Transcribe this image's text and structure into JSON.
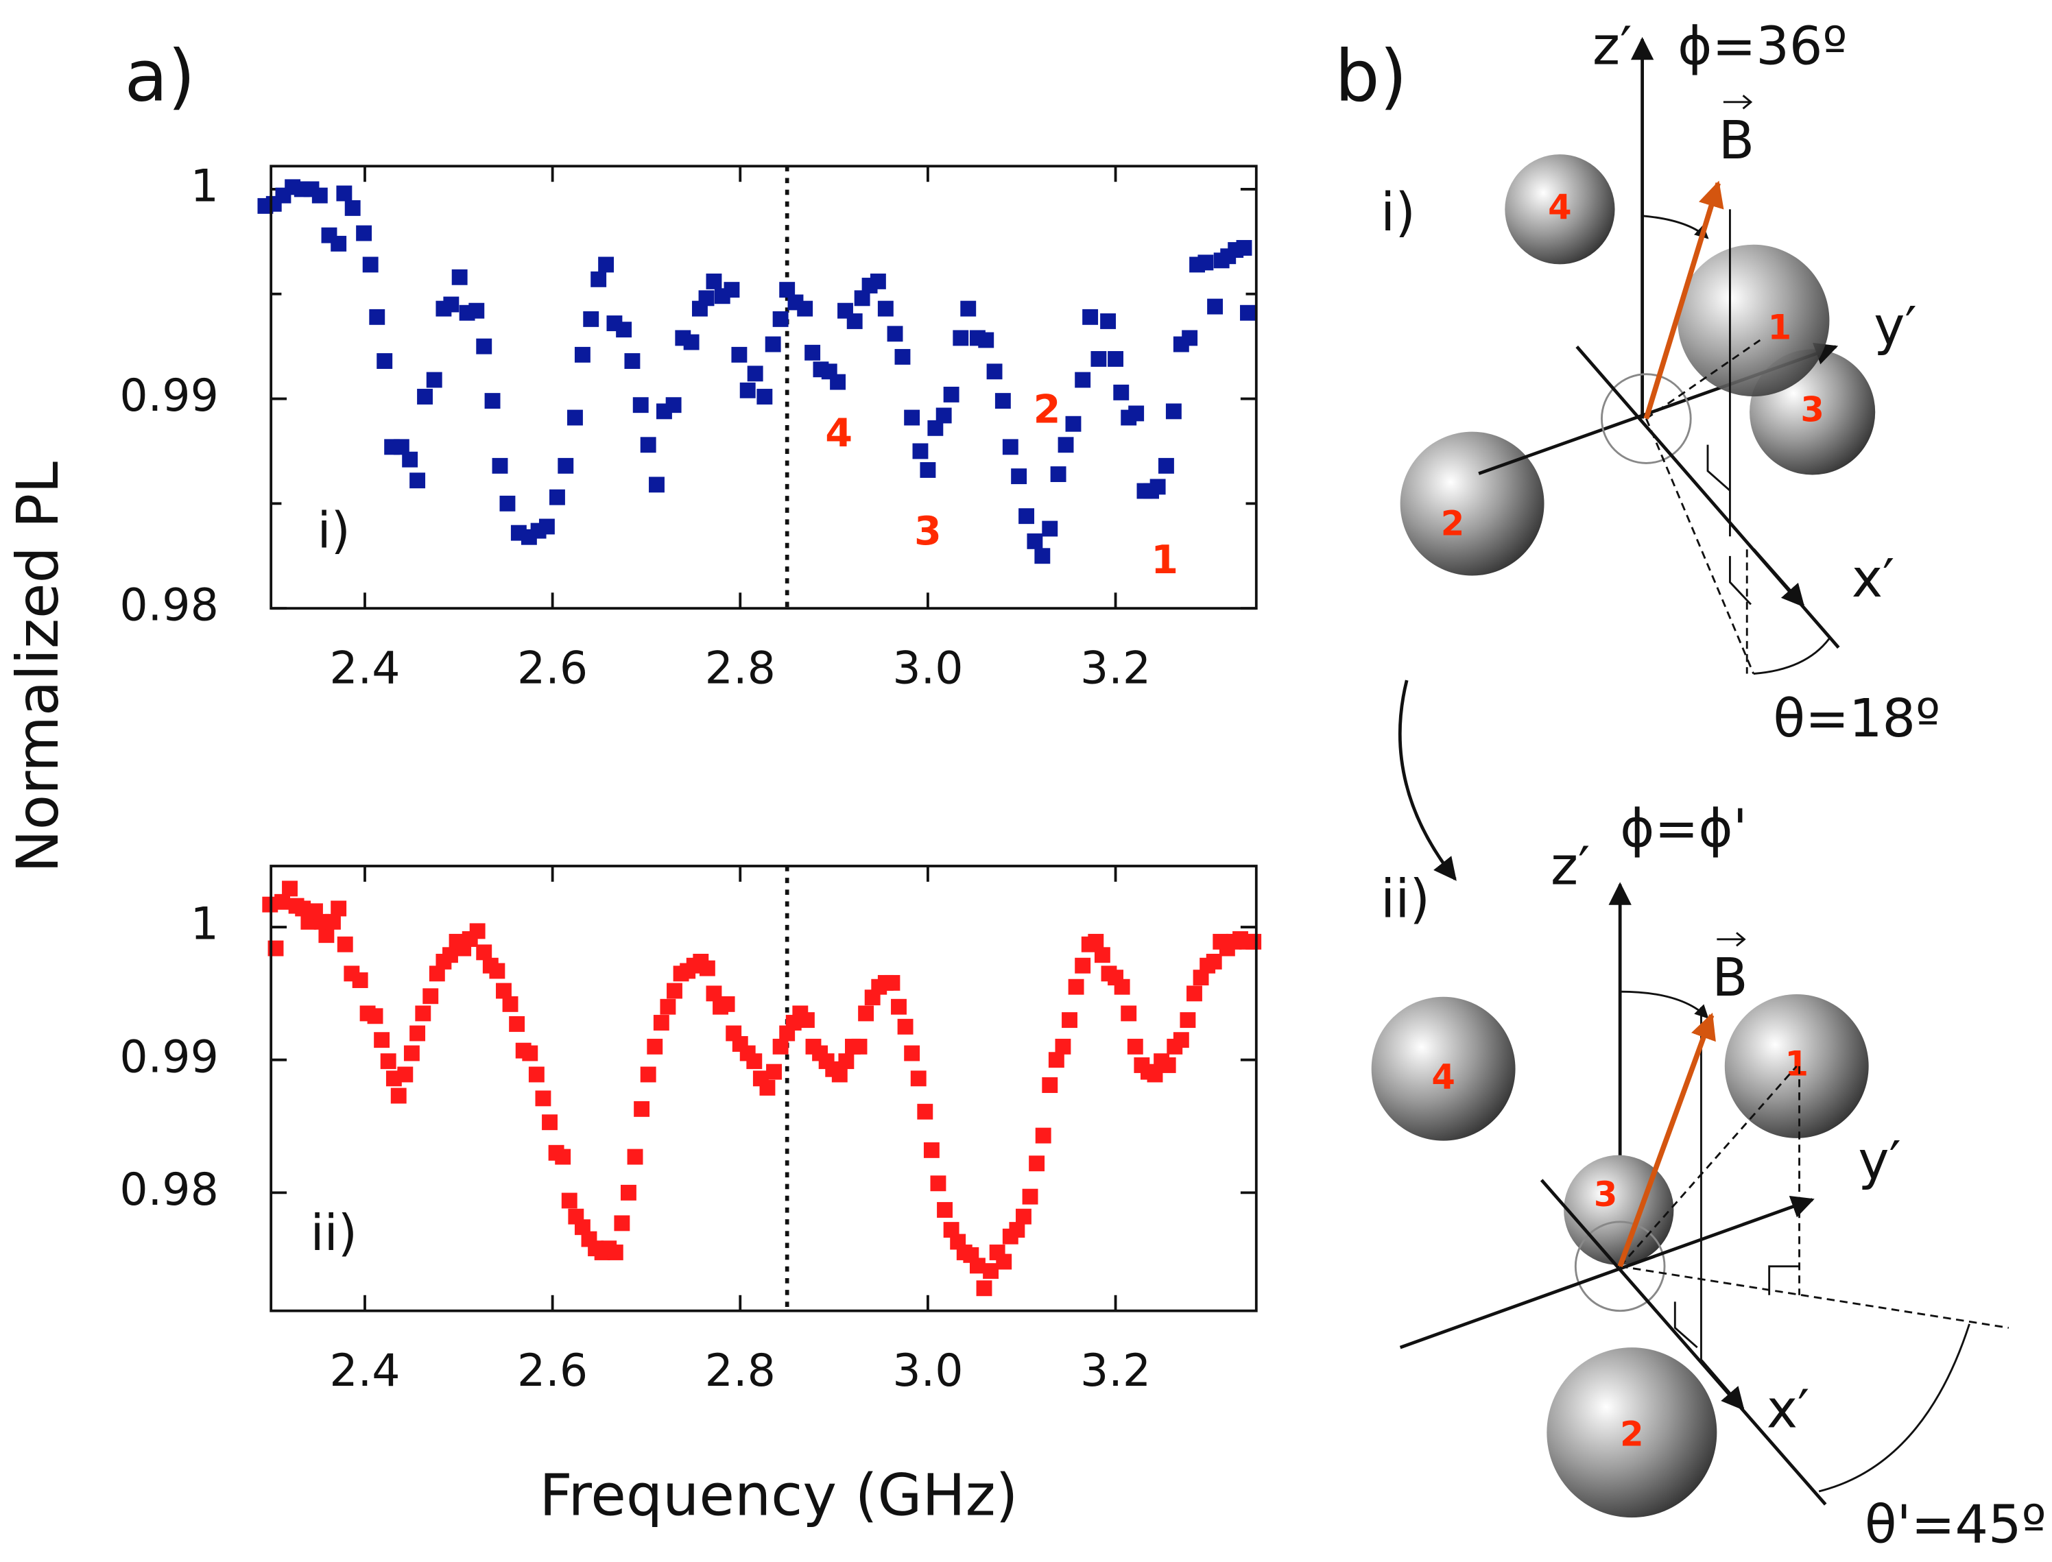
{
  "panel_labels": [
    "a)",
    "b)"
  ],
  "chart_data": [
    {
      "type": "scatter",
      "ylabel": "Normalized PL",
      "panel": "i)",
      "color": "#0a1a9c",
      "annotations": [
        "4",
        "3",
        "2",
        "1"
      ],
      "annotation_color": "#ff2a00",
      "xlim": [
        2.3,
        3.35
      ],
      "xticks": [
        2.4,
        2.6,
        2.8,
        {
          "value": 3,
          "label": "3.0"
        },
        3.2
      ],
      "ylim": [
        0.98,
        1.0011
      ],
      "yticks": [
        0.98,
        0.99,
        1
      ],
      "minor_yticks": [
        0.985,
        0.995
      ],
      "vline": 2.85,
      "x": [
        2.294,
        2.303,
        2.313,
        2.323,
        2.333,
        2.343,
        2.352,
        2.362,
        2.372,
        2.378,
        2.387,
        2.399,
        2.406,
        2.413,
        2.421,
        2.429,
        2.439,
        2.448,
        2.456,
        2.464,
        2.474,
        2.484,
        2.492,
        2.501,
        2.509,
        2.519,
        2.527,
        2.536,
        2.544,
        2.552,
        2.564,
        2.575,
        2.585,
        2.594,
        2.605,
        2.614,
        2.624,
        2.632,
        2.641,
        2.649,
        2.657,
        2.666,
        2.676,
        2.685,
        2.694,
        2.702,
        2.711,
        2.719,
        2.729,
        2.739,
        2.748,
        2.757,
        2.764,
        2.772,
        2.781,
        2.791,
        2.799,
        2.808,
        2.816,
        2.826,
        2.835,
        2.843,
        2.85,
        2.859,
        2.869,
        2.877,
        2.886,
        2.895,
        2.904,
        2.912,
        2.922,
        2.93,
        2.938,
        2.947,
        2.955,
        2.965,
        2.973,
        2.983,
        2.992,
        3.0,
        3.008,
        3.017,
        3.025,
        3.035,
        3.043,
        3.053,
        3.062,
        3.071,
        3.08,
        3.088,
        3.097,
        3.105,
        3.114,
        3.122,
        3.13,
        3.139,
        3.147,
        3.155,
        3.165,
        3.173,
        3.182,
        3.192,
        3.2,
        3.206,
        3.214,
        3.222,
        3.231,
        3.238,
        3.245,
        3.254,
        3.262,
        3.27,
        3.279,
        3.287,
        3.296,
        3.306,
        3.313,
        3.32,
        3.328,
        3.337,
        3.341
      ],
      "values": [
        0.9992,
        0.9993,
        0.9997,
        1.0001,
        1.0,
        1.0,
        0.9997,
        0.9978,
        0.9974,
        0.9998,
        0.9991,
        0.9979,
        0.9964,
        0.9939,
        0.9918,
        0.9877,
        0.9877,
        0.9871,
        0.9861,
        0.9901,
        0.9909,
        0.9943,
        0.9945,
        0.9958,
        0.9941,
        0.9942,
        0.9925,
        0.9899,
        0.9868,
        0.985,
        0.9836,
        0.9834,
        0.9837,
        0.9839,
        0.9853,
        0.9868,
        0.9891,
        0.9921,
        0.9938,
        0.9957,
        0.9964,
        0.9936,
        0.9933,
        0.9918,
        0.9897,
        0.9878,
        0.9859,
        0.9894,
        0.9897,
        0.9929,
        0.9927,
        0.9943,
        0.9948,
        0.9956,
        0.9949,
        0.9952,
        0.9921,
        0.9904,
        0.9912,
        0.9901,
        0.9926,
        0.9938,
        0.9952,
        0.9946,
        0.9943,
        0.9922,
        0.9914,
        0.9913,
        0.9908,
        0.9942,
        0.9937,
        0.9948,
        0.9954,
        0.9956,
        0.9943,
        0.9931,
        0.992,
        0.9891,
        0.9875,
        0.9866,
        0.9886,
        0.9892,
        0.9902,
        0.9929,
        0.9943,
        0.9929,
        0.9928,
        0.9913,
        0.9899,
        0.9877,
        0.9863,
        0.9844,
        0.9832,
        0.9825,
        0.9838,
        0.9864,
        0.9878,
        0.9888,
        0.9909,
        0.9939,
        0.9919,
        0.9937,
        0.9919,
        0.9903,
        0.9891,
        0.9893,
        0.9856,
        0.9856,
        0.9858,
        0.9868,
        0.9894,
        0.9926,
        0.9929,
        0.9964,
        0.9965,
        0.9944,
        0.9966,
        0.9968,
        0.9971,
        0.9972,
        0.9941
      ]
    },
    {
      "type": "scatter",
      "xlabel": "Frequency (GHz)",
      "panel": "ii)",
      "color": "#ff1a1a",
      "xlim": [
        2.3,
        3.35
      ],
      "xticks": [
        2.4,
        2.6,
        2.8,
        {
          "value": 3,
          "label": "3.0"
        },
        3.2
      ],
      "ylim": [
        0.9711,
        1.0046
      ],
      "yticks": [
        0.98,
        0.99,
        1
      ],
      "vline": 2.85,
      "x": [
        2.299,
        2.305,
        2.312,
        2.32,
        2.327,
        2.334,
        2.34,
        2.347,
        2.354,
        2.359,
        2.366,
        2.372,
        2.379,
        2.386,
        2.395,
        2.403,
        2.411,
        2.418,
        2.425,
        2.431,
        2.436,
        2.443,
        2.45,
        2.456,
        2.462,
        2.47,
        2.477,
        2.484,
        2.491,
        2.498,
        2.505,
        2.512,
        2.52,
        2.527,
        2.534,
        2.541,
        2.548,
        2.555,
        2.562,
        2.569,
        2.576,
        2.583,
        2.59,
        2.597,
        2.604,
        2.611,
        2.618,
        2.625,
        2.632,
        2.639,
        2.646,
        2.653,
        2.66,
        2.667,
        2.674,
        2.681,
        2.688,
        2.695,
        2.702,
        2.709,
        2.716,
        2.723,
        2.73,
        2.737,
        2.744,
        2.751,
        2.758,
        2.765,
        2.772,
        2.779,
        2.786,
        2.793,
        2.8,
        2.808,
        2.815,
        2.822,
        2.829,
        2.836,
        2.843,
        2.85,
        2.857,
        2.864,
        2.871,
        2.878,
        2.885,
        2.892,
        2.899,
        2.906,
        2.913,
        2.92,
        2.927,
        2.934,
        2.941,
        2.948,
        2.955,
        2.962,
        2.969,
        2.976,
        2.983,
        2.99,
        2.997,
        3.004,
        3.011,
        3.018,
        3.025,
        3.032,
        3.039,
        3.046,
        3.053,
        3.06,
        3.067,
        3.074,
        3.081,
        3.088,
        3.095,
        3.102,
        3.109,
        3.116,
        3.123,
        3.13,
        3.137,
        3.144,
        3.151,
        3.158,
        3.165,
        3.172,
        3.179,
        3.186,
        3.193,
        3.2,
        3.207,
        3.214,
        3.221,
        3.228,
        3.235,
        3.242,
        3.249,
        3.256,
        3.263,
        3.27,
        3.277,
        3.284,
        3.291,
        3.298,
        3.305,
        3.312,
        3.319,
        3.326,
        3.333,
        3.34,
        3.347
      ],
      "values": [
        1.0017,
        0.9984,
        1.0019,
        1.0029,
        1.0016,
        1.0014,
        1.0004,
        1.0012,
        1.0004,
        0.9994,
        1.0004,
        1.0014,
        0.9987,
        0.9965,
        0.996,
        0.9935,
        0.9933,
        0.9915,
        0.9899,
        0.9886,
        0.9873,
        0.9889,
        0.9905,
        0.992,
        0.9935,
        0.9948,
        0.9965,
        0.9974,
        0.9979,
        0.9989,
        0.9984,
        0.9991,
        0.9997,
        0.9981,
        0.9971,
        0.9967,
        0.9952,
        0.9942,
        0.9927,
        0.9907,
        0.9905,
        0.9889,
        0.9871,
        0.9853,
        0.983,
        0.9827,
        0.9794,
        0.9782,
        0.9774,
        0.9765,
        0.9758,
        0.9755,
        0.9758,
        0.9755,
        0.9777,
        0.98,
        0.9827,
        0.9863,
        0.9889,
        0.991,
        0.9928,
        0.994,
        0.9952,
        0.9965,
        0.9967,
        0.9971,
        0.9974,
        0.9969,
        0.995,
        0.994,
        0.9942,
        0.992,
        0.9912,
        0.9905,
        0.9899,
        0.9886,
        0.9879,
        0.9891,
        0.991,
        0.992,
        0.9928,
        0.9935,
        0.993,
        0.991,
        0.9905,
        0.9899,
        0.9893,
        0.9889,
        0.9899,
        0.991,
        0.991,
        0.9935,
        0.9947,
        0.9955,
        0.9958,
        0.9958,
        0.994,
        0.9925,
        0.9905,
        0.9886,
        0.9861,
        0.9832,
        0.9807,
        0.9787,
        0.9772,
        0.9763,
        0.9755,
        0.9753,
        0.9745,
        0.9728,
        0.9741,
        0.9755,
        0.9748,
        0.9767,
        0.9772,
        0.9782,
        0.9797,
        0.9822,
        0.9843,
        0.9881,
        0.99,
        0.991,
        0.993,
        0.9955,
        0.9971,
        0.9987,
        0.9989,
        0.9979,
        0.9965,
        0.9962,
        0.9955,
        0.9935,
        0.991,
        0.9896,
        0.9891,
        0.9889,
        0.9899,
        0.9896,
        0.991,
        0.9915,
        0.993,
        0.995,
        0.9962,
        0.9971,
        0.9974,
        0.9989,
        0.9984,
        0.9989,
        0.9991,
        0.9989,
        0.9989
      ]
    }
  ],
  "diagram": {
    "top": {
      "panel": "i)",
      "z_axis": "z′",
      "phi": "ϕ=36º",
      "field": "B",
      "y_axis": "y′",
      "x_axis": "x′",
      "theta": "θ=18º",
      "spheres": [
        "1",
        "2",
        "3",
        "4"
      ]
    },
    "bottom": {
      "panel": "ii)",
      "z_axis": "z′",
      "phi": "ϕ=ϕ'",
      "field": "B",
      "y_axis": "y′",
      "x_axis": "x′",
      "theta": "θ'=45º",
      "spheres": [
        "1",
        "2",
        "3",
        "4"
      ]
    }
  }
}
